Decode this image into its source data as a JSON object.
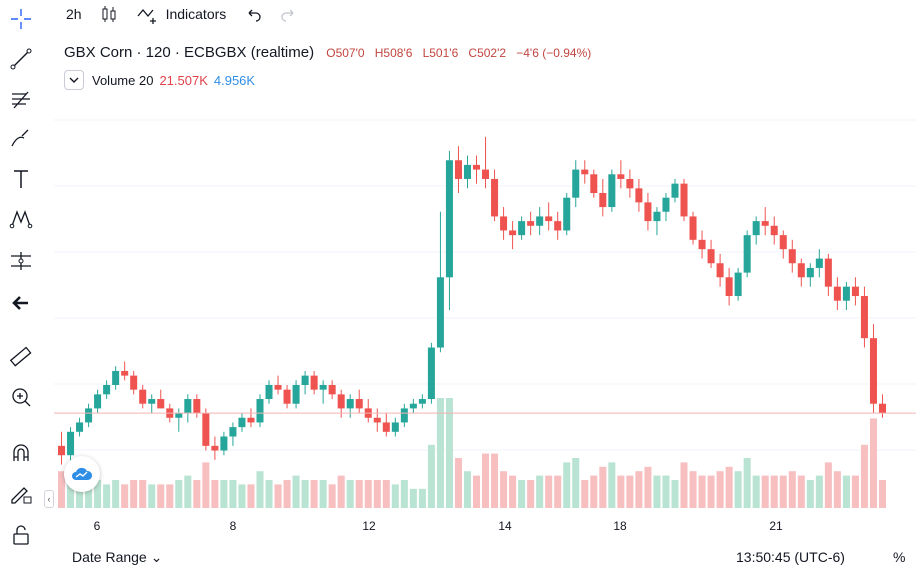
{
  "topbar": {
    "interval": "2h",
    "indicators_label": "Indicators"
  },
  "legend": {
    "title": "GBX Corn · 120 · ECBGBX (realtime)",
    "open": "O507'0",
    "high": "H508'6",
    "low": "L501'6",
    "close": "C502'2",
    "change": "−4'6 (−0.94%)",
    "volume_label": "Volume 20",
    "volume_value": "21.507K",
    "volume_ma": "4.956K"
  },
  "x_axis": {
    "ticks": [
      "6",
      "8",
      "12",
      "14",
      "18",
      "21"
    ]
  },
  "bottom": {
    "date_range_label": "Date Range ⌄",
    "clock": "13:50:45 (UTC-6)",
    "percent_label": "%"
  },
  "colors": {
    "up": "#26a69a",
    "down": "#ef5350",
    "up_volume": "#b9e3d2",
    "down_volume": "#f7bfc0",
    "accent": "#2962ff"
  },
  "icons": [
    "crosshair-icon",
    "trend-line-icon",
    "fib-icon",
    "brush-icon",
    "text-icon",
    "pattern-icon",
    "forecast-icon",
    "back-arrow-icon",
    "ruler-icon",
    "zoom-icon",
    "magnet-icon",
    "lock-drawing-icon",
    "lock-icon"
  ],
  "chart_data": {
    "type": "candlestick",
    "title": "GBX Corn · 120 · ECBGBX (realtime)",
    "x_ticks": [
      "6",
      "8",
      "12",
      "14",
      "18",
      "21"
    ],
    "candles": [
      [
        488,
        494,
        480,
        484
      ],
      [
        484,
        496,
        480,
        494
      ],
      [
        494,
        500,
        492,
        498
      ],
      [
        498,
        506,
        496,
        504
      ],
      [
        504,
        512,
        502,
        510
      ],
      [
        510,
        516,
        508,
        514
      ],
      [
        514,
        522,
        512,
        520
      ],
      [
        520,
        524,
        516,
        518
      ],
      [
        518,
        520,
        510,
        512
      ],
      [
        512,
        514,
        504,
        506
      ],
      [
        506,
        510,
        502,
        508
      ],
      [
        508,
        512,
        504,
        504
      ],
      [
        504,
        506,
        498,
        500
      ],
      [
        500,
        504,
        494,
        502
      ],
      [
        502,
        510,
        498,
        508
      ],
      [
        508,
        510,
        500,
        502
      ],
      [
        502,
        504,
        486,
        488
      ],
      [
        488,
        492,
        482,
        486
      ],
      [
        486,
        494,
        484,
        492
      ],
      [
        492,
        498,
        488,
        496
      ],
      [
        496,
        502,
        494,
        500
      ],
      [
        500,
        504,
        496,
        498
      ],
      [
        498,
        510,
        496,
        508
      ],
      [
        508,
        516,
        506,
        514
      ],
      [
        514,
        518,
        510,
        512
      ],
      [
        512,
        514,
        504,
        506
      ],
      [
        506,
        516,
        504,
        514
      ],
      [
        514,
        520,
        510,
        518
      ],
      [
        518,
        520,
        510,
        512
      ],
      [
        512,
        516,
        506,
        514
      ],
      [
        514,
        516,
        508,
        510
      ],
      [
        510,
        512,
        500,
        504
      ],
      [
        504,
        510,
        500,
        508
      ],
      [
        508,
        512,
        502,
        504
      ],
      [
        504,
        508,
        498,
        500
      ],
      [
        500,
        504,
        494,
        498
      ],
      [
        498,
        502,
        492,
        494
      ],
      [
        494,
        500,
        492,
        498
      ],
      [
        498,
        506,
        496,
        504
      ],
      [
        504,
        508,
        502,
        506
      ],
      [
        506,
        510,
        504,
        508
      ],
      [
        508,
        532,
        506,
        530
      ],
      [
        530,
        588,
        528,
        560
      ],
      [
        560,
        614,
        546,
        610
      ],
      [
        610,
        616,
        596,
        602
      ],
      [
        602,
        612,
        598,
        608
      ],
      [
        608,
        612,
        600,
        606
      ],
      [
        606,
        620,
        598,
        602
      ],
      [
        602,
        606,
        584,
        586
      ],
      [
        586,
        590,
        576,
        580
      ],
      [
        580,
        584,
        572,
        578
      ],
      [
        578,
        586,
        576,
        584
      ],
      [
        584,
        588,
        578,
        582
      ],
      [
        582,
        590,
        578,
        586
      ],
      [
        586,
        592,
        580,
        584
      ],
      [
        584,
        588,
        576,
        580
      ],
      [
        580,
        596,
        578,
        594
      ],
      [
        594,
        610,
        590,
        606
      ],
      [
        606,
        610,
        600,
        604
      ],
      [
        604,
        606,
        594,
        596
      ],
      [
        596,
        602,
        586,
        590
      ],
      [
        590,
        606,
        588,
        604
      ],
      [
        604,
        610,
        598,
        602
      ],
      [
        602,
        606,
        594,
        598
      ],
      [
        598,
        602,
        588,
        592
      ],
      [
        592,
        596,
        580,
        584
      ],
      [
        584,
        590,
        578,
        588
      ],
      [
        588,
        596,
        584,
        594
      ],
      [
        594,
        602,
        592,
        600
      ],
      [
        600,
        602,
        584,
        586
      ],
      [
        586,
        588,
        574,
        576
      ],
      [
        576,
        580,
        568,
        572
      ],
      [
        572,
        576,
        564,
        566
      ],
      [
        566,
        570,
        556,
        560
      ],
      [
        560,
        564,
        548,
        552
      ],
      [
        552,
        564,
        550,
        562
      ],
      [
        562,
        580,
        560,
        578
      ],
      [
        578,
        586,
        574,
        584
      ],
      [
        584,
        590,
        578,
        582
      ],
      [
        582,
        586,
        574,
        578
      ],
      [
        578,
        580,
        568,
        572
      ],
      [
        572,
        576,
        562,
        566
      ],
      [
        566,
        568,
        556,
        560
      ],
      [
        560,
        566,
        556,
        564
      ],
      [
        564,
        572,
        560,
        568
      ],
      [
        568,
        570,
        552,
        556
      ],
      [
        556,
        560,
        546,
        550
      ],
      [
        550,
        558,
        546,
        556
      ],
      [
        556,
        560,
        548,
        552
      ],
      [
        552,
        556,
        530,
        534
      ],
      [
        534,
        540,
        502,
        506
      ],
      [
        506,
        510,
        500,
        502
      ]
    ],
    "volume_ylim": [
      0,
      22000
    ],
    "price_ylim": [
      470,
      640
    ],
    "ylabel": ""
  }
}
